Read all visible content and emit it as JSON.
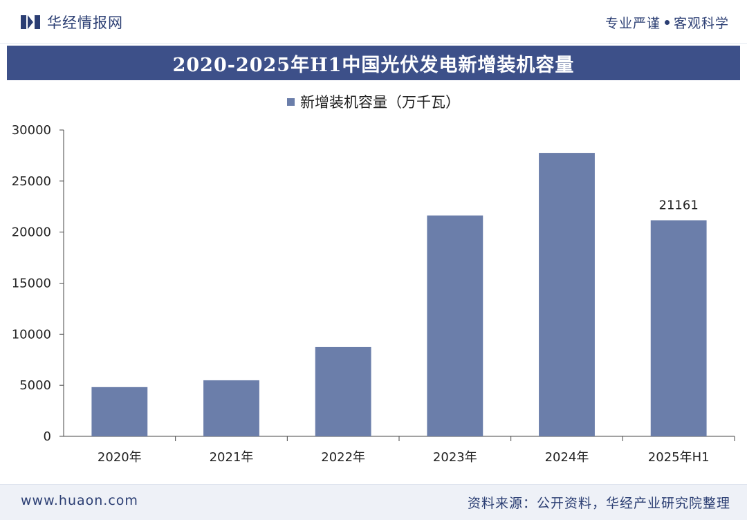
{
  "header": {
    "brand_name": "华经情报网",
    "slogan_left": "专业严谨",
    "slogan_right": "客观科学"
  },
  "footer": {
    "url": "www.huaon.com",
    "source": "资料来源：公开资料，华经产业研究院整理"
  },
  "colors": {
    "bar": "#6b7eaa",
    "title_bar": "#3d5089",
    "brand": "#2b3e73"
  },
  "chart_data": {
    "type": "bar",
    "title": "2020-2025年H1中国光伏发电新增装机容量",
    "categories": [
      "2020年",
      "2021年",
      "2022年",
      "2023年",
      "2024年",
      "2025年H1"
    ],
    "series": [
      {
        "name": "新增装机容量（万千瓦）",
        "values": [
          4820,
          5488,
          8741,
          21630,
          27760,
          21161
        ]
      }
    ],
    "data_labels": [
      "",
      "",
      "",
      "",
      "",
      "21161"
    ],
    "ylim": [
      0,
      30000
    ],
    "yticks": [
      0,
      5000,
      10000,
      15000,
      20000,
      25000,
      30000
    ],
    "grid": false,
    "legend": "top-center"
  }
}
